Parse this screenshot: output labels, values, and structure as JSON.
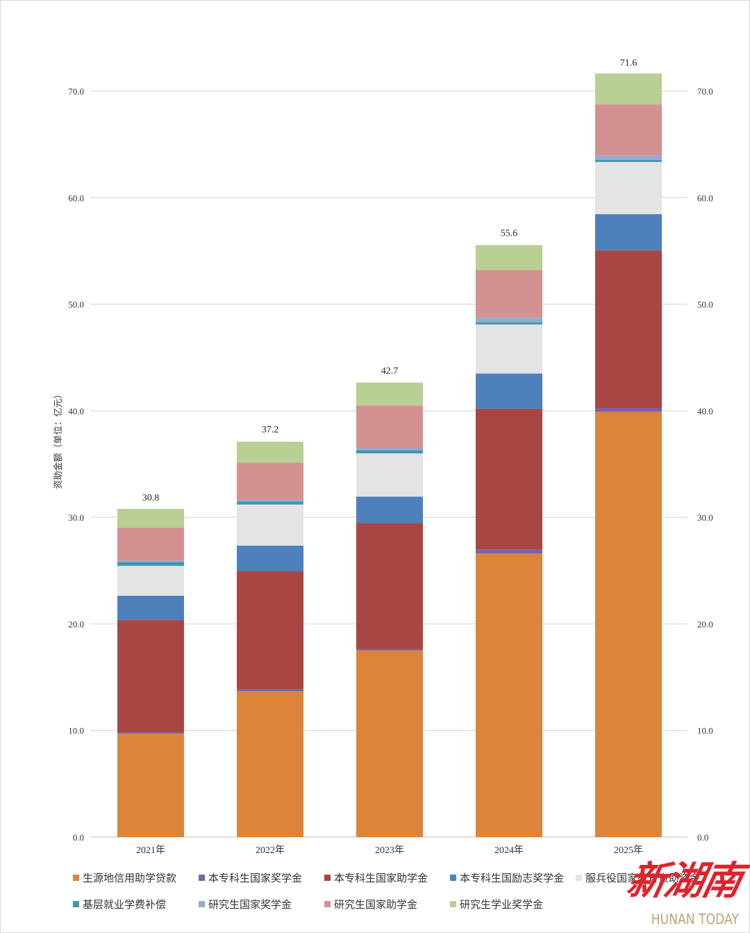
{
  "chart_data": {
    "type": "bar",
    "stacked": true,
    "title": "",
    "xlabel": "",
    "ylabel": "资助金额（单位：亿元）",
    "ylim": [
      0,
      70
    ],
    "yticks": [
      "0.0",
      "10.0",
      "20.0",
      "30.0",
      "40.0",
      "50.0",
      "60.0",
      "70.0"
    ],
    "y_tick_values": [
      0,
      10,
      20,
      30,
      40,
      50,
      60,
      70
    ],
    "secondary_y_axis": true,
    "grid": true,
    "legend_position": "bottom",
    "categories": [
      "2021年",
      "2022年",
      "2023年",
      "2024年",
      "2025年"
    ],
    "totals": [
      "30.8",
      "37.2",
      "42.7",
      "55.6",
      "71.6"
    ],
    "total_values": [
      30.8,
      37.2,
      42.7,
      55.6,
      71.6
    ],
    "series": [
      {
        "name": "生源地信用助学贷款",
        "color": "#dd843b",
        "values": [
          9.7,
          13.7,
          17.5,
          26.6,
          39.9
        ]
      },
      {
        "name": "本专科生国家奖学金",
        "color": "#7f62a2",
        "values": [
          0.15,
          0.15,
          0.15,
          0.4,
          0.35
        ]
      },
      {
        "name": "本专科生国家助学金",
        "color": "#a84643",
        "values": [
          10.5,
          11.1,
          11.8,
          13.2,
          14.8
        ]
      },
      {
        "name": "本专科生国励志奖学金",
        "color": "#4e80bc",
        "values": [
          2.3,
          2.4,
          2.5,
          3.3,
          3.4
        ]
      },
      {
        "name": "服兵役国家教育资助资金",
        "color": "#e4e4e4",
        "values": [
          2.8,
          3.85,
          4.05,
          4.6,
          4.9
        ]
      },
      {
        "name": "基层就业学费补偿",
        "color": "#4398ae",
        "values": [
          0.35,
          0.3,
          0.3,
          0.2,
          0.2
        ]
      },
      {
        "name": "研究生国家奖学金",
        "color": "#94aad1",
        "values": [
          0.15,
          0.15,
          0.2,
          0.45,
          0.4
        ]
      },
      {
        "name": "研究生国家助学金",
        "color": "#d39291",
        "values": [
          3.1,
          3.5,
          4.0,
          4.45,
          4.8
        ]
      },
      {
        "name": "研究生学业奖学金",
        "color": "#b9cf94",
        "values": [
          1.75,
          1.95,
          2.15,
          2.35,
          2.9
        ]
      }
    ]
  },
  "logo": {
    "cn": "新湖南",
    "en": "HUNAN TODAY"
  }
}
